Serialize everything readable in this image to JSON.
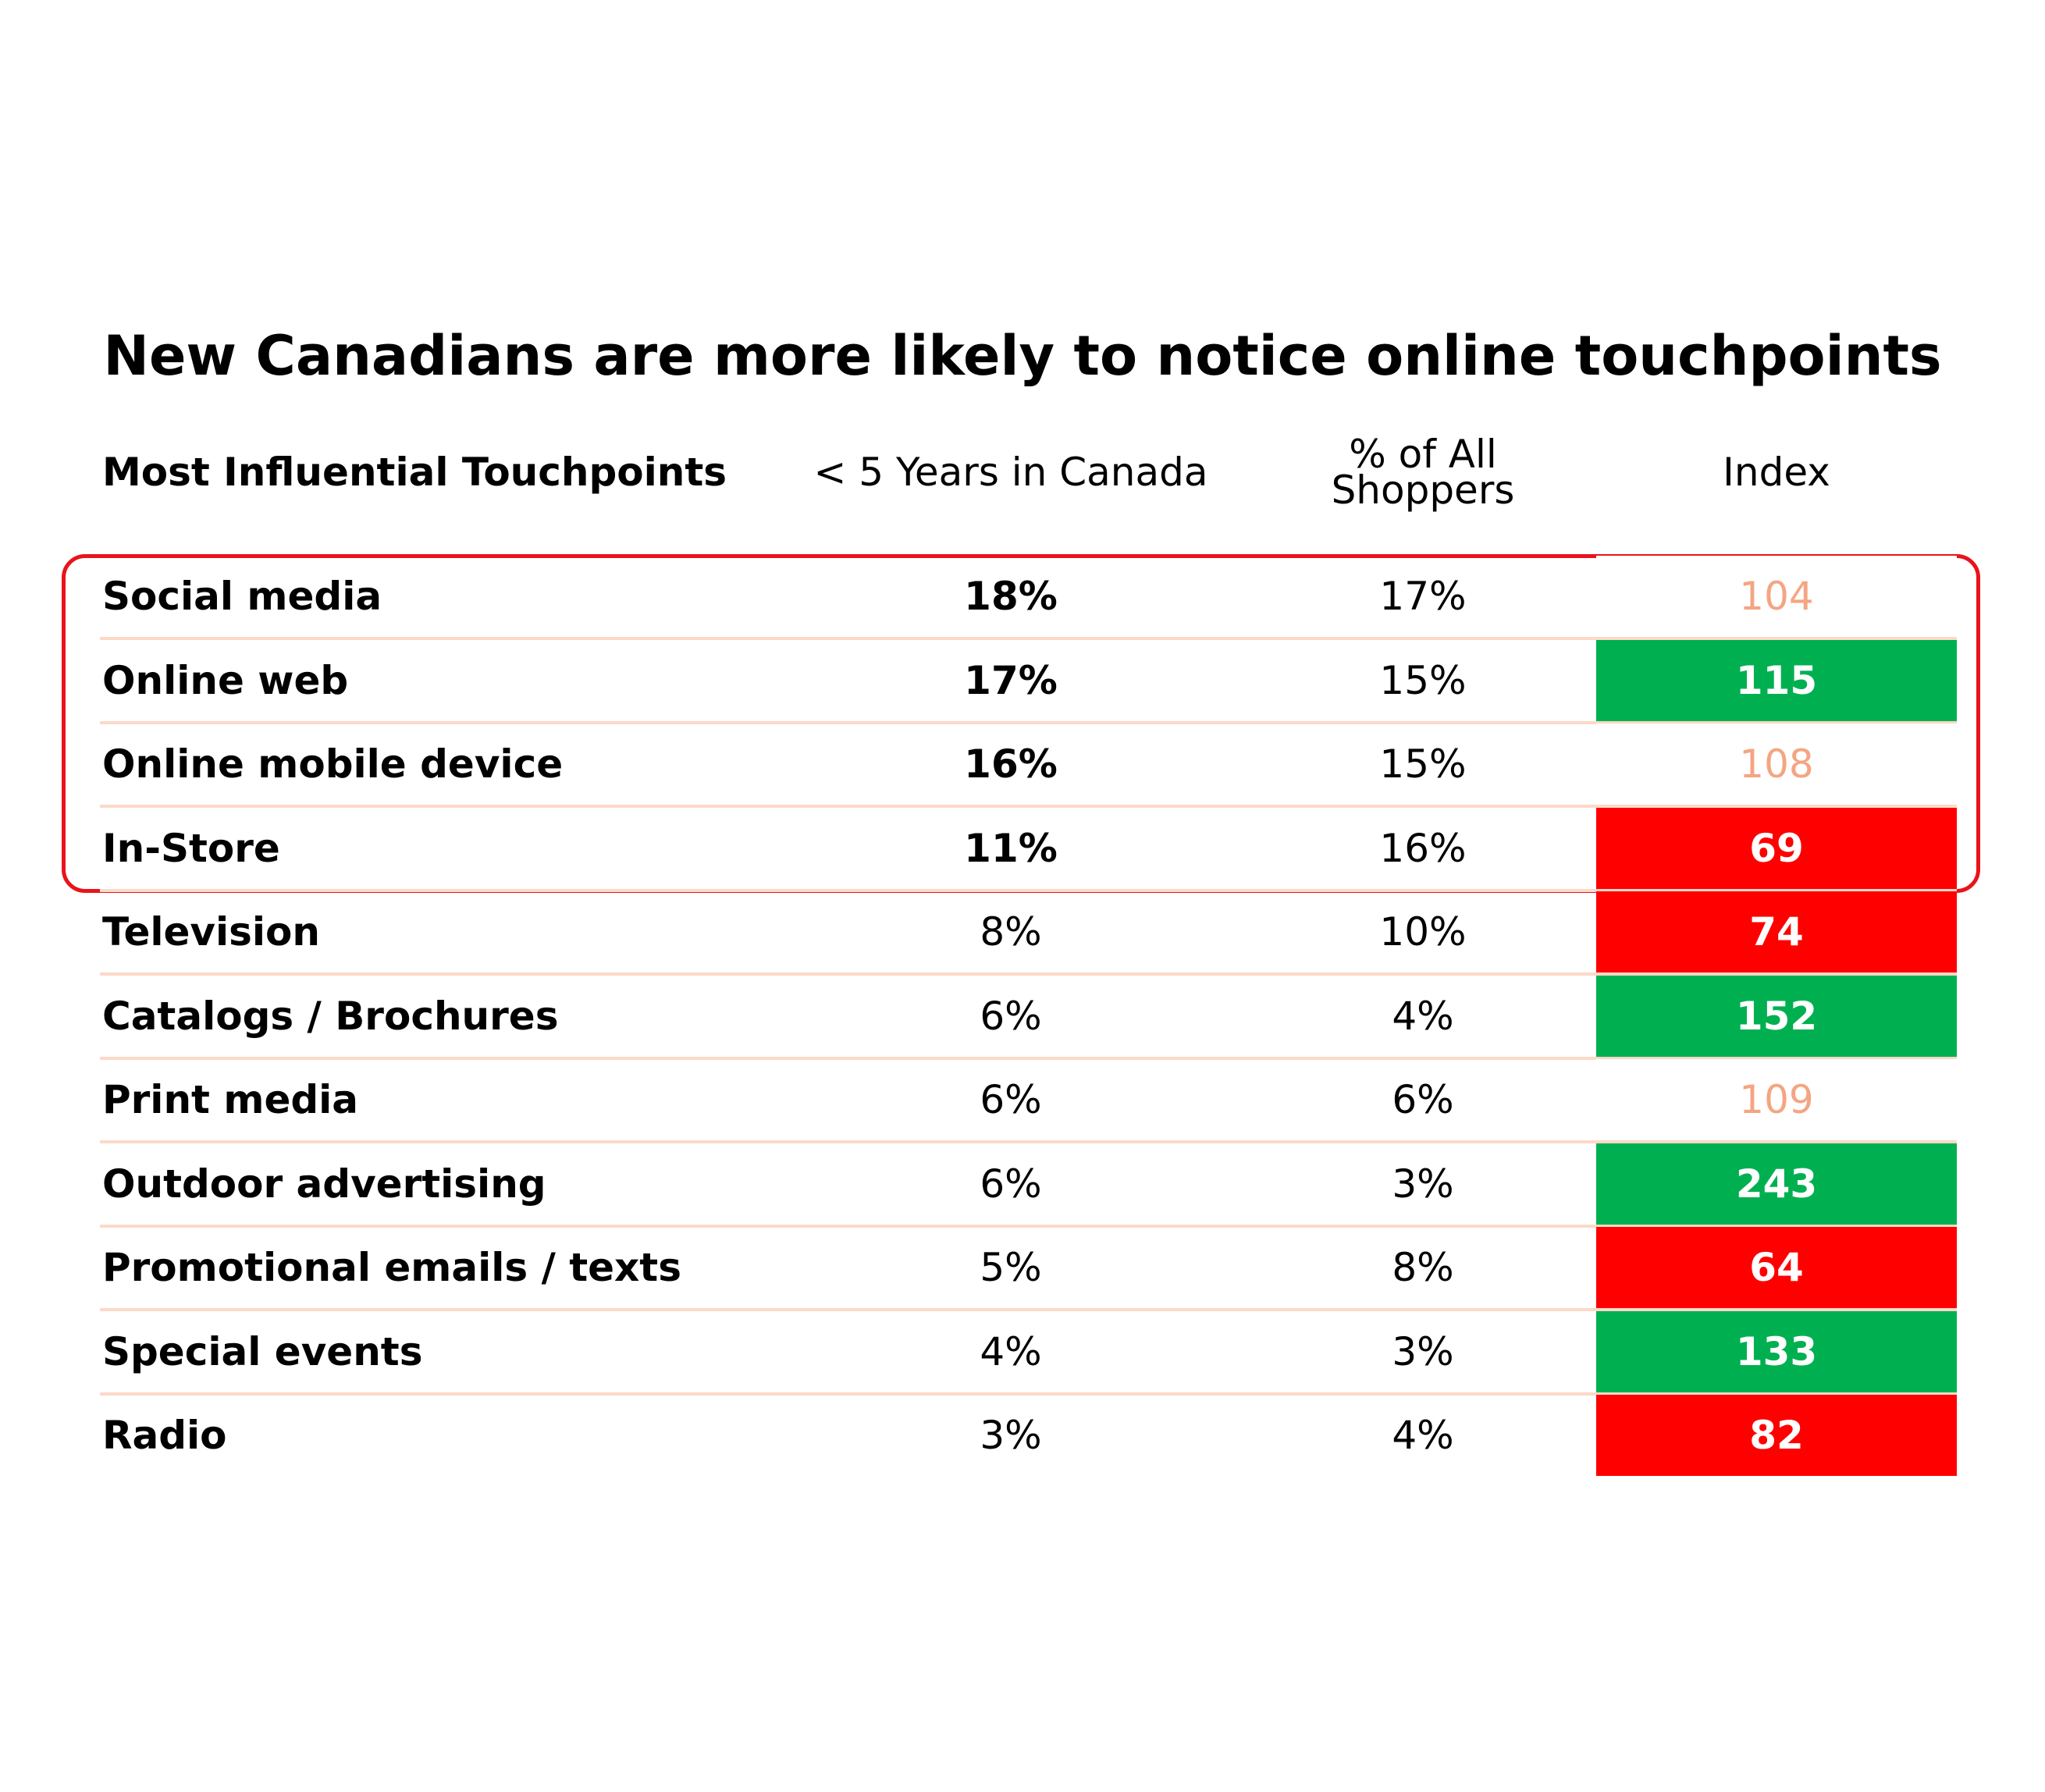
{
  "title": "New Canadians are more likely to notice online touchpoints",
  "table": {
    "header": [
      "Most Influential Touchpoints",
      "< 5 Years in Canada",
      "% of All Shoppers",
      "Index"
    ],
    "rows": [
      [
        "Social media",
        "18%",
        "17%",
        "104"
      ],
      [
        "Online web",
        "17%",
        "15%",
        "115"
      ],
      [
        "Online mobile device",
        "16%",
        "15%",
        "108"
      ],
      [
        "In-Store",
        "11%",
        "16%",
        "69"
      ],
      [
        "Television",
        "8%",
        "10%",
        "74"
      ],
      [
        "Catalogs / Brochures",
        "6%",
        "4%",
        "152"
      ],
      [
        "Print media",
        "6%",
        "6%",
        "109"
      ],
      [
        "Outdoor advertising",
        "6%",
        "3%",
        "243"
      ],
      [
        "Promotional emails / texts",
        "5%",
        "8%",
        "64"
      ],
      [
        "Special events",
        "4%",
        "3%",
        "133"
      ],
      [
        "Radio",
        "3%",
        "4%",
        "82"
      ]
    ],
    "index_fills": [
      "#ffffff",
      "#00b050",
      "#ffffff",
      "#ff0000",
      "#ff0000",
      "#00b050",
      "#ffffff",
      "#00b050",
      "#ff0000",
      "#00b050",
      "#ff0000"
    ],
    "index_text_colors": [
      "#f4a582",
      "#ffffff",
      "#f4a582",
      "#ffffff",
      "#ffffff",
      "#ffffff",
      "#f4a582",
      "#ffffff",
      "#ffffff",
      "#ffffff",
      "#ffffff"
    ],
    "highlighted_rows": 4
  }
}
